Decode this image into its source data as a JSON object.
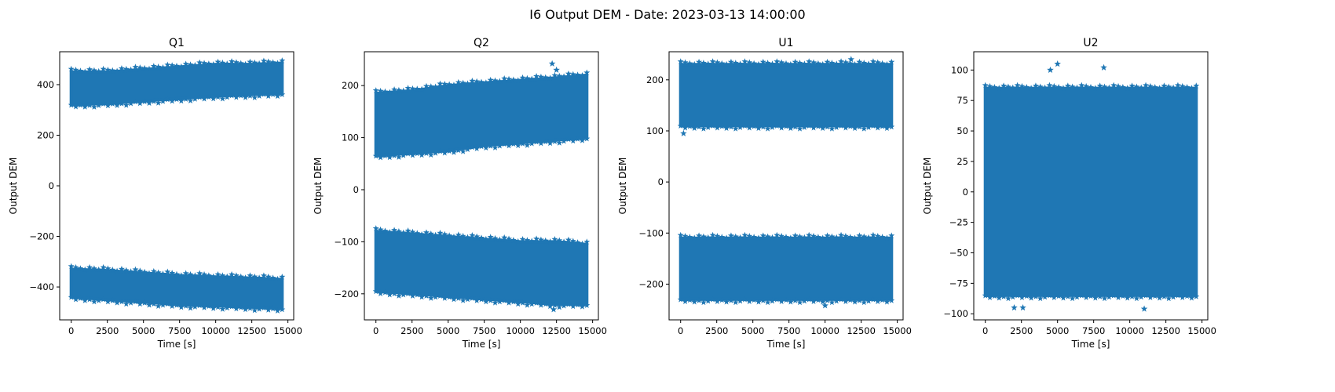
{
  "figure": {
    "suptitle": "I6 Output DEM - Date: 2023-03-13 14:00:00",
    "colors": {
      "marker": "#1f77b4",
      "axes": "#000000",
      "background": "#ffffff"
    }
  },
  "chart_data": [
    {
      "type": "scatter",
      "title": "Q1",
      "xlabel": "Time [s]",
      "ylabel": "Output DEM",
      "marker": "star",
      "xlim": [
        -800,
        15400
      ],
      "ylim": [
        -530,
        530
      ],
      "xticks": [
        0,
        2500,
        5000,
        7500,
        10000,
        12500,
        15000
      ],
      "yticks": [
        -400,
        -200,
        0,
        200,
        400
      ],
      "ytick_labels": [
        "−400",
        "−200",
        "0",
        "200",
        "400"
      ],
      "series": [
        {
          "x": [
            0,
            2500,
            5000,
            7500,
            10000,
            12500,
            14600
          ],
          "y_top": [
            450,
            450,
            460,
            470,
            480,
            480,
            485
          ],
          "y_bottom": [
            320,
            325,
            335,
            345,
            355,
            360,
            365
          ]
        },
        {
          "x": [
            0,
            2500,
            5000,
            7500,
            10000,
            12500,
            14600
          ],
          "y_top": [
            -330,
            -335,
            -345,
            -355,
            -360,
            -365,
            -370
          ],
          "y_bottom": [
            -440,
            -450,
            -460,
            -470,
            -475,
            -480,
            -485
          ]
        }
      ]
    },
    {
      "type": "scatter",
      "title": "Q2",
      "xlabel": "Time [s]",
      "ylabel": "Output DEM",
      "marker": "star",
      "xlim": [
        -800,
        15400
      ],
      "ylim": [
        -250,
        265
      ],
      "xticks": [
        0,
        2500,
        5000,
        7500,
        10000,
        12500,
        15000
      ],
      "yticks": [
        -200,
        -100,
        0,
        100,
        200
      ],
      "ytick_labels": [
        "−200",
        "−100",
        "0",
        "100",
        "200"
      ],
      "series": [
        {
          "x": [
            0,
            2500,
            5000,
            7500,
            10000,
            12500,
            14600
          ],
          "y_top": [
            185,
            190,
            200,
            205,
            210,
            215,
            220
          ],
          "y_bottom": [
            65,
            70,
            75,
            85,
            90,
            95,
            100
          ]
        },
        {
          "x": [
            0,
            2500,
            5000,
            7500,
            10000,
            12500,
            14600
          ],
          "y_top": [
            -80,
            -85,
            -90,
            -95,
            -100,
            -100,
            -105
          ],
          "y_bottom": [
            -195,
            -200,
            -205,
            -210,
            -215,
            -220,
            -220
          ]
        }
      ],
      "outliers": [
        {
          "x": 12200,
          "y": 242
        },
        {
          "x": 12500,
          "y": 230
        },
        {
          "x": 12300,
          "y": -230
        }
      ]
    },
    {
      "type": "scatter",
      "title": "U1",
      "xlabel": "Time [s]",
      "ylabel": "Output DEM",
      "marker": "star",
      "xlim": [
        -800,
        15400
      ],
      "ylim": [
        -270,
        255
      ],
      "xticks": [
        0,
        2500,
        5000,
        7500,
        10000,
        12500,
        15000
      ],
      "yticks": [
        -200,
        -100,
        0,
        100,
        200
      ],
      "ytick_labels": [
        "−200",
        "−100",
        "0",
        "100",
        "200"
      ],
      "series": [
        {
          "x": [
            0,
            2500,
            5000,
            7500,
            10000,
            12500,
            14600
          ],
          "y_top": [
            230,
            230,
            230,
            230,
            230,
            230,
            230
          ],
          "y_bottom": [
            110,
            110,
            110,
            110,
            110,
            110,
            110
          ]
        },
        {
          "x": [
            0,
            2500,
            5000,
            7500,
            10000,
            12500,
            14600
          ],
          "y_top": [
            -110,
            -110,
            -110,
            -110,
            -110,
            -110,
            -110
          ],
          "y_bottom": [
            -230,
            -230,
            -230,
            -230,
            -230,
            -230,
            -230
          ]
        }
      ],
      "outliers": [
        {
          "x": 200,
          "y": 95
        },
        {
          "x": 11800,
          "y": 240
        },
        {
          "x": 10000,
          "y": -242
        }
      ]
    },
    {
      "type": "scatter",
      "title": "U2",
      "xlabel": "Time [s]",
      "ylabel": "Output DEM",
      "marker": "star",
      "xlim": [
        -800,
        15400
      ],
      "ylim": [
        -105,
        115
      ],
      "xticks": [
        0,
        2500,
        5000,
        7500,
        10000,
        12500,
        15000
      ],
      "yticks": [
        -100,
        -75,
        -50,
        -25,
        0,
        25,
        50,
        75,
        100
      ],
      "ytick_labels": [
        "−100",
        "−75",
        "−50",
        "−25",
        "0",
        "25",
        "50",
        "75",
        "100"
      ],
      "series": [
        {
          "x": [
            0,
            2500,
            5000,
            7500,
            10000,
            12500,
            14600
          ],
          "y_top": [
            85,
            85,
            85,
            85,
            85,
            85,
            85
          ],
          "y_bottom": [
            -85,
            -85,
            -85,
            -85,
            -85,
            -85,
            -85
          ]
        }
      ],
      "outliers": [
        {
          "x": 4500,
          "y": 100
        },
        {
          "x": 5000,
          "y": 105
        },
        {
          "x": 8200,
          "y": 102
        },
        {
          "x": 2000,
          "y": -95
        },
        {
          "x": 2600,
          "y": -95
        },
        {
          "x": 11000,
          "y": -96
        }
      ]
    }
  ]
}
